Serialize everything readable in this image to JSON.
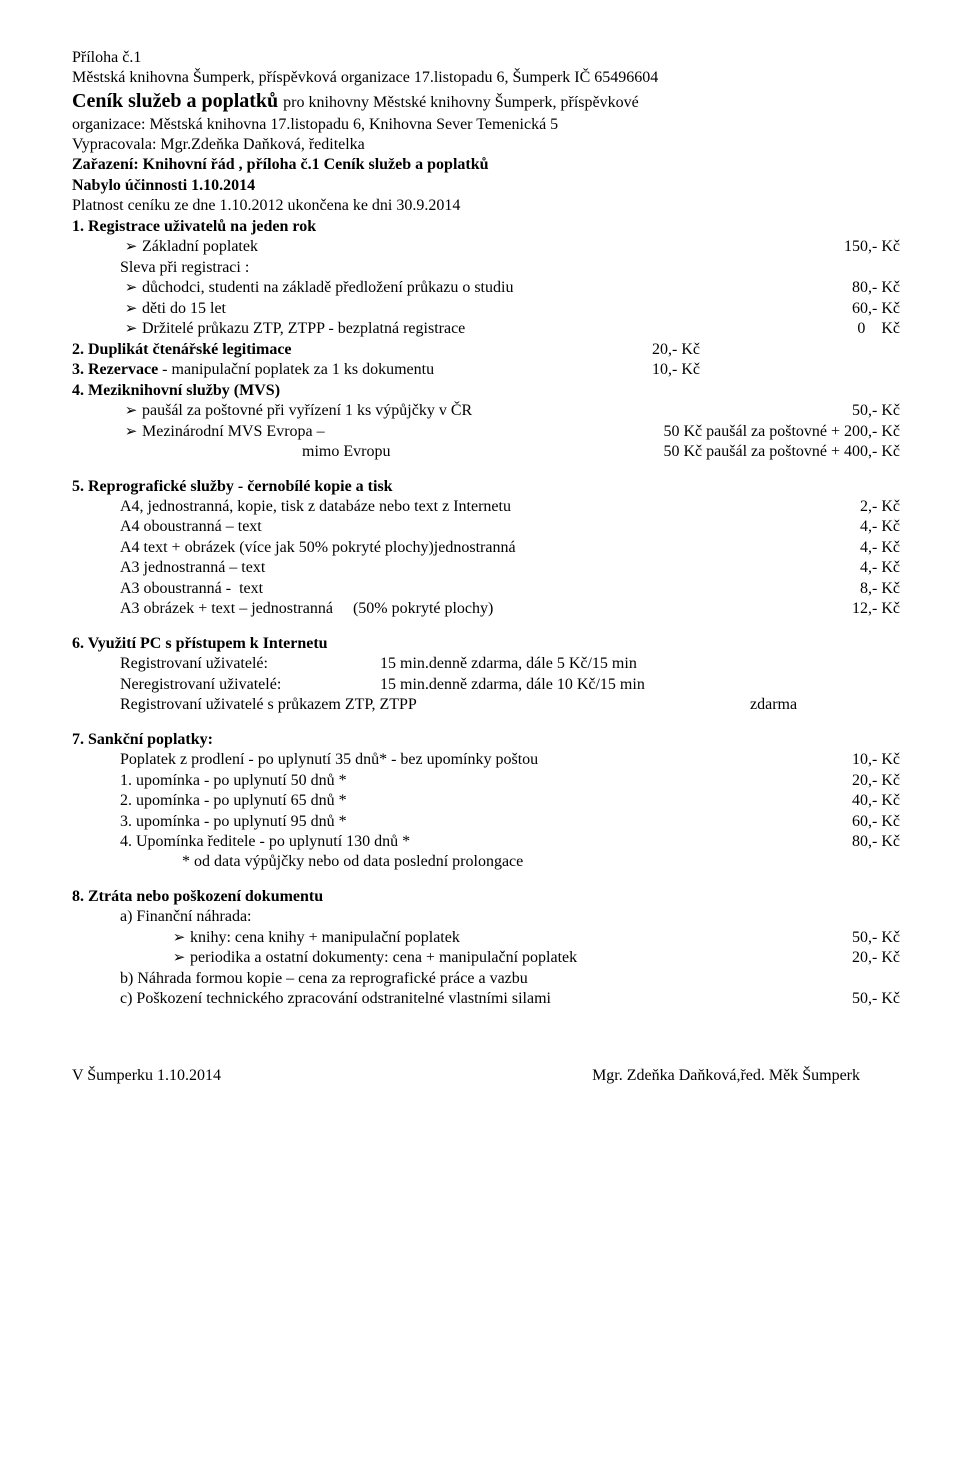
{
  "header": {
    "attachment": "Příloha č.1",
    "org_line": "Městská knihovna Šumperk, příspěvková organizace 17.listopadu 6, Šumperk  IČ 65496604",
    "big_title_prefix": "Ceník  služeb a poplatků ",
    "big_title_rest": "pro knihovny Městské knihovny Šumperk, příspěvkové",
    "org2": "organizace: Městská knihovna 17.listopadu 6, Knihovna Sever Temenická 5",
    "vypracovala": "Vypracovala: Mgr.Zdeňka Daňková, ředitelka",
    "zarazeni": "Zařazení: Knihovní řád , příloha č.1 Ceník služeb a poplatků",
    "nabylo": "Nabylo účinnosti 1.10.2014",
    "platnost": "Platnost ceníku ze dne 1.10.2012 ukončena ke dni 30.9.2014"
  },
  "s1": {
    "title": "1. Registrace uživatelů na jeden rok",
    "base_label": "Základní poplatek",
    "base_price": "150,- Kč",
    "sleva": "Sleva při registraci :",
    "a_label": "důchodci, studenti na základě předložení průkazu o studiu",
    "a_price": "80,- Kč",
    "b_label": "děti do 15 let",
    "b_price": "60,- Kč",
    "c_label": "Držitelé průkazu ZTP, ZTPP - bezplatná registrace",
    "c_price": "0    Kč"
  },
  "s2": {
    "label_b": "2. Duplikát čtenářské legitimace",
    "price": "20,- Kč"
  },
  "s3": {
    "label_b": "3. Rezervace",
    "label_rest": " - manipulační poplatek za 1 ks dokumentu",
    "price": "10,- Kč"
  },
  "s4": {
    "title": "4. Meziknihovní služby (MVS)",
    "a_label": "paušál za poštovné při vyřízení 1 ks výpůjčky v ČR",
    "a_price": "50,- Kč",
    "b_label": "Mezinárodní MVS Evropa –",
    "b_price": "50 Kč paušál za poštovné + 200,- Kč",
    "b2_label": "mimo Evropu",
    "b2_price": "50 Kč paušál za poštovné + 400,- Kč"
  },
  "s5": {
    "title": "5. Reprografické služby - černobílé kopie a tisk",
    "rows": [
      {
        "l": "A4, jednostranná, kopie, tisk z databáze nebo text z Internetu",
        "r": "2,- Kč"
      },
      {
        "l": "A4 oboustranná – text",
        "r": "4,- Kč"
      },
      {
        "l": "A4 text + obrázek (více jak 50% pokryté plochy)jednostranná",
        "r": "4,- Kč"
      },
      {
        "l": "A3 jednostranná – text",
        "r": "4,- Kč"
      },
      {
        "l": "A3 oboustranná -  text",
        "r": "8,- Kč"
      },
      {
        "l": "A3 obrázek + text – jednostranná     (50% pokryté plochy)",
        "r": "12,- Kč"
      }
    ]
  },
  "s6": {
    "title": "6. Využití PC s přístupem k Internetu",
    "r1_l": "Registrovaní uživatelé:",
    "r1_r": "15 min.denně zdarma, dále 5 Kč/15 min",
    "r2_l": "Neregistrovaní uživatelé:",
    "r2_r": "15 min.denně zdarma, dále 10 Kč/15 min",
    "r3_l": "Registrovaní uživatelé s průkazem ZTP, ZTPP",
    "r3_r": "zdarma"
  },
  "s7": {
    "title": "7. Sankční poplatky:",
    "r0_l": "Poplatek z prodlení - po uplynutí 35 dnů* - bez upomínky poštou",
    "r0_r": "10,- Kč",
    "rows": [
      {
        "l": "1. upomínka - po uplynutí 50 dnů *",
        "r": "20,- Kč"
      },
      {
        "l": "2. upomínka - po uplynutí 65 dnů *",
        "r": "40,- Kč"
      },
      {
        "l": "3. upomínka - po uplynutí 95 dnů *",
        "r": "60,- Kč"
      },
      {
        "l": "4. Upomínka ředitele  - po uplynutí 130 dnů *",
        "r": "80,- Kč"
      }
    ],
    "note": "* od data výpůjčky nebo od data  poslední prolongace"
  },
  "s8": {
    "title": "8. Ztráta nebo poškození dokumentu",
    "a_head": "a) Finanční náhrada:",
    "a1_l": "knihy: cena knihy + manipulační poplatek",
    "a1_r": "50,- Kč",
    "a2_l": "periodika a ostatní dokumenty: cena + manipulační poplatek",
    "a2_r": "20,- Kč",
    "b": "b) Náhrada formou kopie – cena za reprografické práce a vazbu",
    "c_l": "c) Poškození technického zpracování odstranitelné vlastními silami",
    "c_r": "50,- Kč"
  },
  "footer": {
    "left": "V Šumperku 1.10.2014",
    "right": "Mgr. Zdeňka Daňková,řed. Měk Šumperk"
  }
}
